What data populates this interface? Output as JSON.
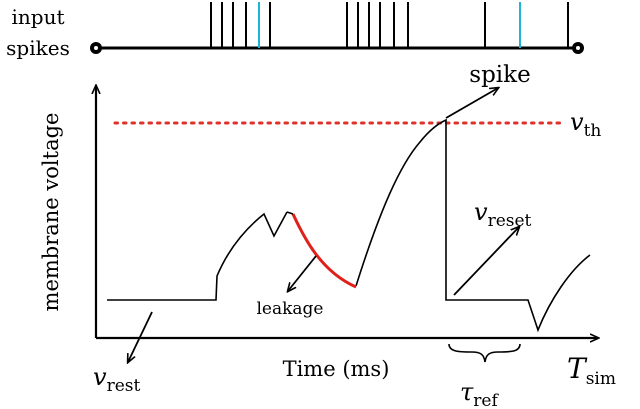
{
  "input_spikes": {
    "label_line1": "input",
    "label_line2": "spikes",
    "color_normal": "#000000",
    "color_highlight": "#1fb3d8"
  },
  "labels": {
    "y_axis": "membrane voltage",
    "x_axis": "Time (ms)",
    "spike": "spike",
    "leakage": "leakage",
    "v_th": {
      "base": "v",
      "sub": "th"
    },
    "v_reset": {
      "base": "v",
      "sub": "reset"
    },
    "v_rest": {
      "base": "v",
      "sub": "rest"
    },
    "tau_ref": {
      "base": "τ",
      "sub": "ref"
    },
    "t_sim": {
      "base": "T",
      "sub": "sim"
    }
  },
  "colors": {
    "threshold_line": "#e0302a",
    "leakage_curve": "#e0201a",
    "axes": "#000000"
  }
}
